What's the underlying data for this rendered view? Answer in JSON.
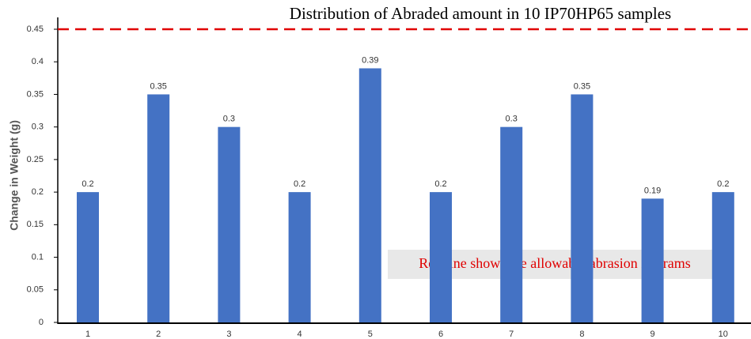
{
  "chart_data": {
    "type": "bar",
    "title": "Distribution of Abraded amount in 10 IP70HP65 samples",
    "y_label": "Change in Weight (g)",
    "annotation": "Red line shows the allowable abrasion in grams",
    "categories": [
      "1",
      "2",
      "3",
      "4",
      "5",
      "6",
      "7",
      "8",
      "9",
      "10"
    ],
    "values": [
      0.2,
      0.35,
      0.3,
      0.2,
      0.39,
      0.2,
      0.3,
      0.35,
      0.19,
      0.2
    ],
    "color": "#4472c4",
    "ylim": [
      0,
      0.45
    ],
    "yticks": [
      0,
      0.05,
      0.1,
      0.15,
      0.2,
      0.25,
      0.3,
      0.35,
      0.4,
      0.45
    ],
    "reference_line": {
      "value": 0.45,
      "color": "#e00000"
    },
    "grid": false
  }
}
